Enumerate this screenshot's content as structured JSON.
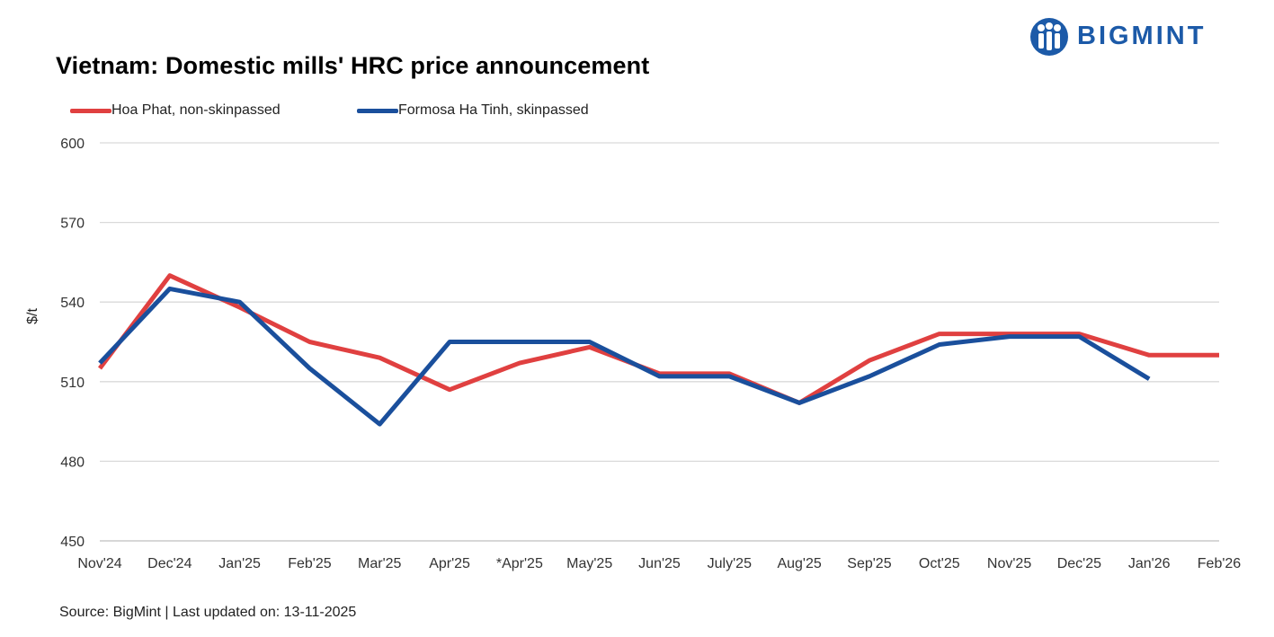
{
  "title": "Vietnam: Domestic mills' HRC price announcement",
  "brand": {
    "name": "BIGMINT",
    "color": "#1c5aa8",
    "icon": "bigmint-people-icon"
  },
  "source": "Source: BigMint | Last updated on: 13-11-2025",
  "chart_data": {
    "type": "line",
    "title": "Vietnam: Domestic mills' HRC price announcement",
    "xlabel": "",
    "ylabel": "$/t",
    "ylim": [
      450,
      600
    ],
    "yticks": [
      600,
      570,
      540,
      510,
      480,
      450
    ],
    "grid": true,
    "legend_position": "top-left",
    "categories": [
      "Nov'24",
      "Dec'24",
      "Jan'25",
      "Feb'25",
      "Mar'25",
      "Apr'25",
      "*Apr'25",
      "May'25",
      "Jun'25",
      "July'25",
      "Aug'25",
      "Sep'25",
      "Oct'25",
      "Nov'25",
      "Dec'25",
      "Jan'26",
      "Feb'26"
    ],
    "series": [
      {
        "name": "Hoa Phat, non-skinpassed",
        "color": "#e04040",
        "values": [
          515,
          550,
          538,
          525,
          519,
          507,
          517,
          523,
          513,
          513,
          502,
          518,
          528,
          528,
          528,
          520,
          520
        ]
      },
      {
        "name": "Formosa Ha Tinh, skinpassed",
        "color": "#1a4f9c",
        "values": [
          517,
          545,
          540,
          515,
          494,
          525,
          525,
          525,
          512,
          512,
          502,
          512,
          524,
          527,
          527,
          511,
          null
        ]
      }
    ]
  }
}
